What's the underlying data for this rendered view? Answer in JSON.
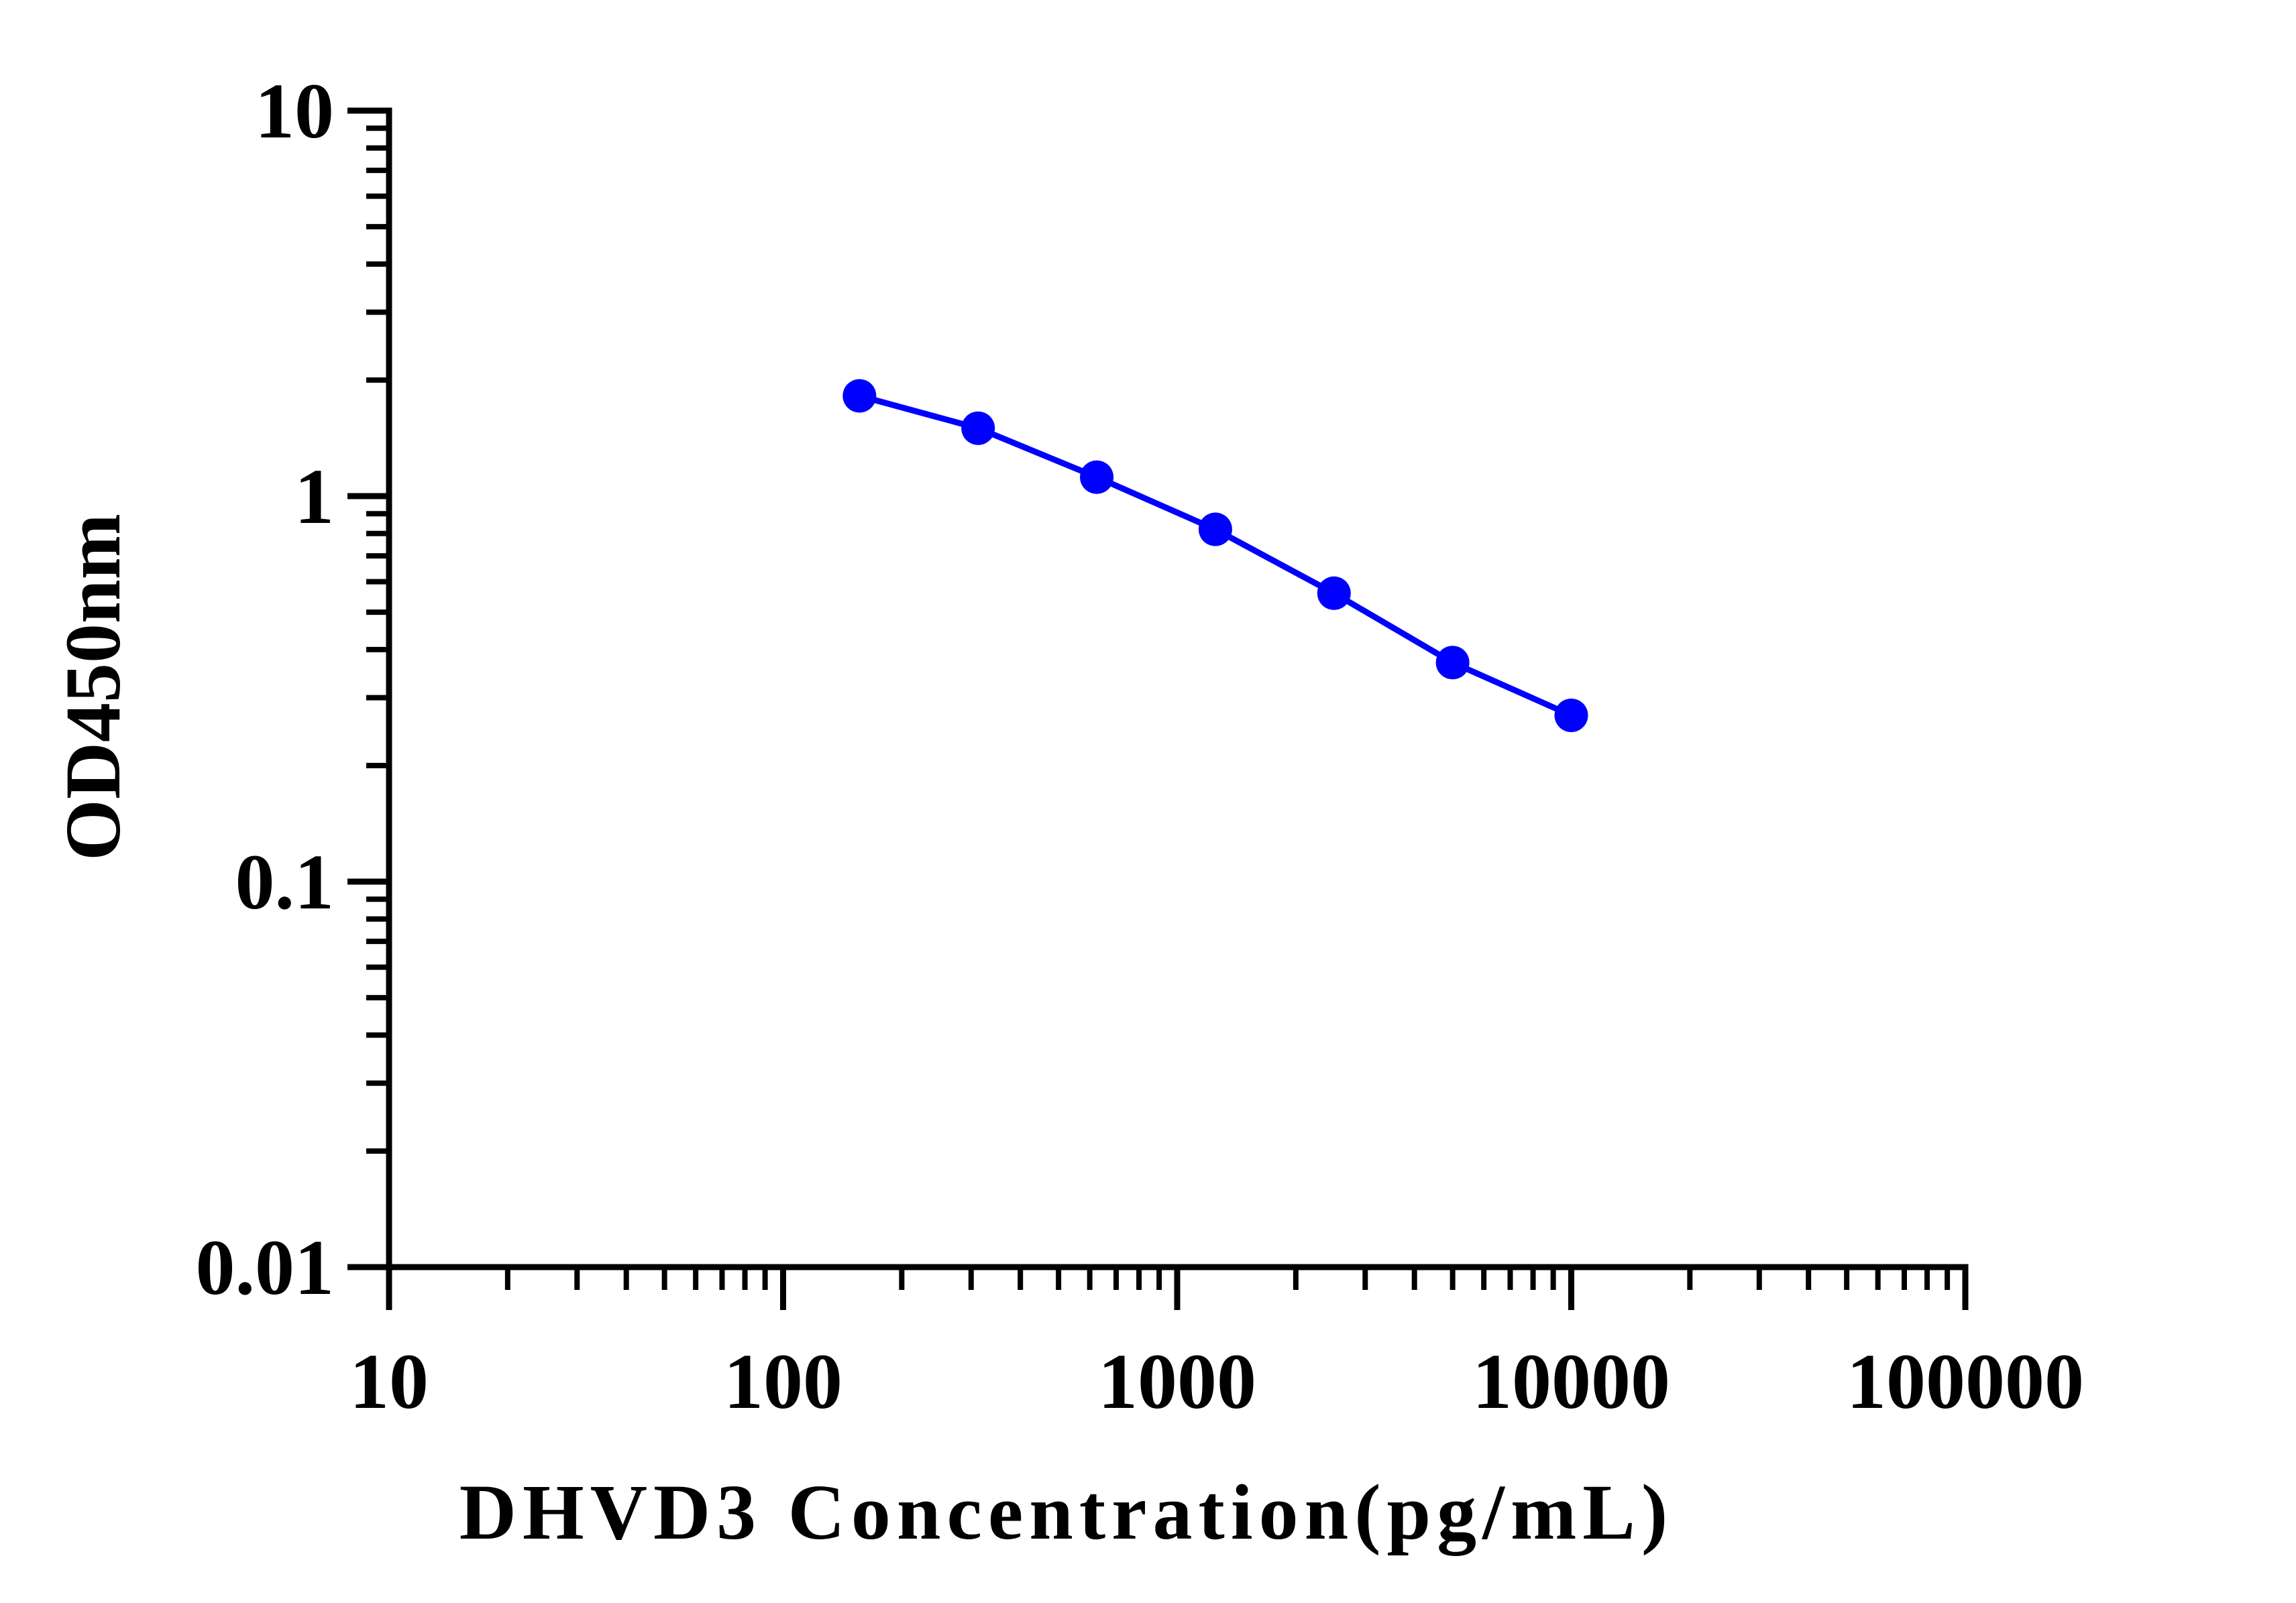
{
  "chart_data": {
    "type": "line",
    "title": "",
    "xlabel": "DHVD3 Concentration(pg/mL)",
    "ylabel": "OD450nm",
    "x_scale": "log",
    "y_scale": "log",
    "xlim": [
      10,
      100000
    ],
    "ylim": [
      0.01,
      10
    ],
    "x_ticks": [
      "10",
      "100",
      "1000",
      "10000",
      "100000"
    ],
    "y_ticks": [
      "0.01",
      "0.1",
      "1",
      "10"
    ],
    "grid": false,
    "legend": "none",
    "series": [
      {
        "color": "#0000ff",
        "x": [
          156.25,
          312.5,
          625,
          1250,
          2500,
          5000,
          10000
        ],
        "y": [
          1.82,
          1.5,
          1.12,
          0.82,
          0.56,
          0.37,
          0.27
        ]
      }
    ]
  }
}
